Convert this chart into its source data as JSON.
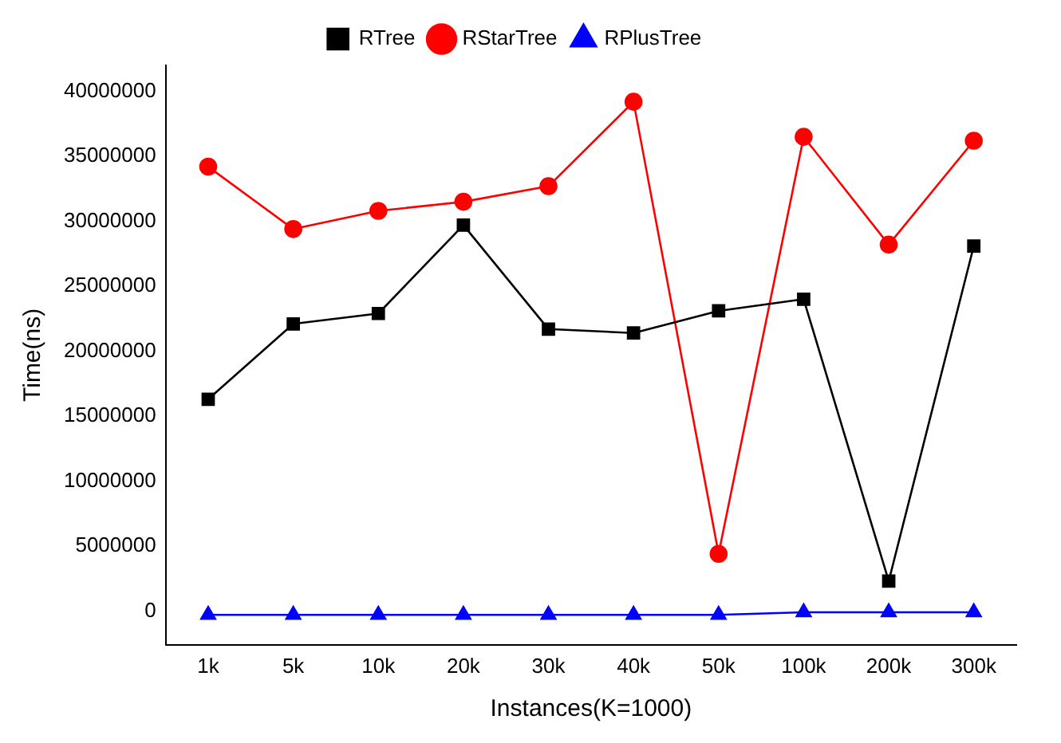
{
  "chart_data": {
    "type": "line",
    "xlabel": "Instances(K=1000)",
    "ylabel": "Time(ns)",
    "categories": [
      "1k",
      "5k",
      "10k",
      "20k",
      "30k",
      "40k",
      "50k",
      "100k",
      "200k",
      "300k"
    ],
    "series": [
      {
        "name": "RTree",
        "color": "#000000",
        "marker": "square",
        "values": [
          16300000,
          22100000,
          22900000,
          29700000,
          21700000,
          21400000,
          23100000,
          24000000,
          2300000,
          28100000
        ]
      },
      {
        "name": "RStarTree",
        "color": "#ff0000",
        "marker": "circle",
        "values": [
          34200000,
          29400000,
          30800000,
          31500000,
          32700000,
          39200000,
          4400000,
          36500000,
          28200000,
          36200000
        ]
      },
      {
        "name": "RPlusTree",
        "color": "#0000ff",
        "marker": "triangle",
        "values": [
          -300000,
          -300000,
          -300000,
          -300000,
          -300000,
          -300000,
          -300000,
          -100000,
          -100000,
          -100000
        ]
      }
    ],
    "ylim": [
      -2600000,
      42000000
    ],
    "yticks": [
      0,
      5000000,
      10000000,
      15000000,
      20000000,
      25000000,
      30000000,
      35000000,
      40000000
    ],
    "grid": false,
    "legend": "top",
    "line_style": "solid"
  }
}
